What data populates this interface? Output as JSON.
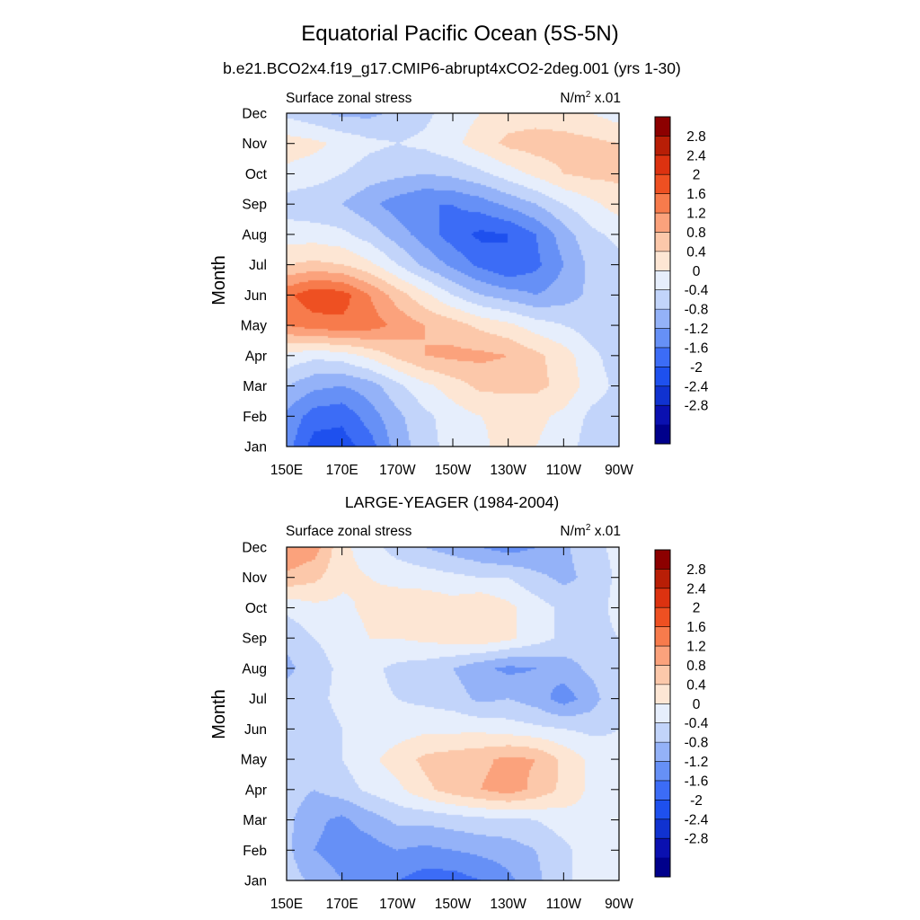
{
  "figure": {
    "title": "Equatorial Pacific Ocean (5S-5N)"
  },
  "chart_data": [
    {
      "type": "heatmap",
      "title": "b.e21.BCO2x4.f19_g17.CMIP6-abrupt4xCO2-2deg.001 (yrs 1-30)",
      "left_string": "Surface zonal stress",
      "units_base": "N/m",
      "units_exp": "2",
      "units_scale": "x.01",
      "xlabel": "",
      "ylabel": "Month",
      "x_ticks": [
        "150E",
        "170E",
        "170W",
        "150W",
        "130W",
        "110W",
        "90W"
      ],
      "y_ticks": [
        "Jan",
        "Feb",
        "Mar",
        "Apr",
        "May",
        "Jun",
        "Jul",
        "Aug",
        "Sep",
        "Oct",
        "Nov",
        "Dec"
      ],
      "x": [
        150,
        160,
        170,
        180,
        190,
        200,
        210,
        220,
        230,
        240,
        250,
        260,
        270
      ],
      "colorbar_labels": [
        "2.8",
        "2.4",
        "2",
        "1.6",
        "1.2",
        "0.8",
        "0.4",
        "0",
        "-0.4",
        "-0.8",
        "-1.2",
        "-1.6",
        "-2",
        "-2.4",
        "-2.8"
      ],
      "levels": [
        -2.8,
        -2.4,
        -2.0,
        -1.6,
        -1.2,
        -0.8,
        -0.4,
        0,
        0.4,
        0.8,
        1.2,
        1.6,
        2.0,
        2.4,
        2.8
      ],
      "z": [
        [
          -1.0,
          -1.8,
          -1.8,
          -1.4,
          -0.6,
          -0.2,
          0.2,
          0.3,
          0.6,
          0.4,
          0.2,
          -0.2,
          -0.3
        ],
        [
          -0.9,
          -1.4,
          -1.5,
          -1.0,
          -0.5,
          -0.1,
          0.2,
          0.4,
          0.5,
          0.5,
          0.3,
          -0.1,
          -0.2
        ],
        [
          -0.4,
          -0.7,
          -0.8,
          -0.6,
          -0.1,
          0.3,
          0.6,
          0.9,
          0.9,
          0.9,
          0.7,
          0.2,
          -0.1
        ],
        [
          0.3,
          0.1,
          0.2,
          0.5,
          0.9,
          1.2,
          1.3,
          1.3,
          1.2,
          0.9,
          0.6,
          0.1,
          -0.2
        ],
        [
          1.6,
          1.8,
          1.9,
          1.8,
          1.5,
          1.2,
          1.0,
          0.7,
          0.5,
          0.2,
          0.0,
          -0.2,
          -0.3
        ],
        [
          1.9,
          2.3,
          2.2,
          1.6,
          1.0,
          0.5,
          0.0,
          -0.4,
          -0.6,
          -0.8,
          -0.6,
          -0.3,
          -0.2
        ],
        [
          0.8,
          0.9,
          0.8,
          0.5,
          0.0,
          -0.5,
          -0.9,
          -1.3,
          -1.6,
          -1.3,
          -0.8,
          -0.3,
          -0.1
        ],
        [
          0.2,
          0.2,
          0.1,
          -0.2,
          -0.6,
          -1.0,
          -1.4,
          -1.7,
          -1.6,
          -1.2,
          -0.6,
          -0.1,
          0.1
        ],
        [
          -0.2,
          -0.3,
          -0.4,
          -0.7,
          -1.0,
          -1.2,
          -1.2,
          -1.0,
          -0.7,
          -0.4,
          0.0,
          0.3,
          0.6
        ],
        [
          0.3,
          0.2,
          0.0,
          -0.2,
          -0.3,
          -0.4,
          -0.3,
          -0.1,
          0.2,
          0.5,
          0.8,
          0.9,
          0.9
        ],
        [
          0.6,
          0.5,
          0.3,
          0.1,
          0.0,
          0.1,
          0.3,
          0.6,
          0.9,
          1.0,
          1.0,
          0.9,
          0.8
        ],
        [
          -0.1,
          -0.3,
          -0.5,
          -0.5,
          -0.3,
          -0.1,
          0.2,
          0.4,
          0.6,
          0.6,
          0.5,
          0.4,
          0.2
        ]
      ]
    },
    {
      "type": "heatmap",
      "title": "LARGE-YEAGER (1984-2004)",
      "left_string": "Surface zonal stress",
      "units_base": "N/m",
      "units_exp": "2",
      "units_scale": "x.01",
      "xlabel": "",
      "ylabel": "Month",
      "x_ticks": [
        "150E",
        "170E",
        "170W",
        "150W",
        "130W",
        "110W",
        "90W"
      ],
      "y_ticks": [
        "Jan",
        "Feb",
        "Mar",
        "Apr",
        "May",
        "Jun",
        "Jul",
        "Aug",
        "Sep",
        "Oct",
        "Nov",
        "Dec"
      ],
      "x": [
        150,
        160,
        170,
        180,
        190,
        200,
        210,
        220,
        230,
        240,
        250,
        260,
        270
      ],
      "colorbar_labels": [
        "2.8",
        "2.4",
        "2",
        "1.6",
        "1.2",
        "0.8",
        "0.4",
        "0",
        "-0.4",
        "-0.8",
        "-1.2",
        "-1.6",
        "-2",
        "-2.4",
        "-2.8"
      ],
      "levels": [
        -2.8,
        -2.4,
        -2.0,
        -1.6,
        -1.2,
        -0.8,
        -0.4,
        0,
        0.4,
        0.8,
        1.2,
        1.6,
        2.0,
        2.4,
        2.8
      ],
      "z": [
        [
          -0.2,
          -0.5,
          -0.8,
          -1.0,
          -1.2,
          -1.4,
          -1.4,
          -1.2,
          -0.9,
          -0.5,
          -0.1,
          0.2,
          0.2
        ],
        [
          -0.3,
          -0.8,
          -1.0,
          -1.0,
          -0.8,
          -0.9,
          -0.8,
          -0.7,
          -0.6,
          -0.4,
          -0.1,
          0.2,
          0.2
        ],
        [
          -0.3,
          -0.7,
          -0.9,
          -0.6,
          -0.3,
          -0.3,
          -0.2,
          -0.1,
          -0.1,
          0.0,
          0.2,
          0.3,
          0.3
        ],
        [
          -0.2,
          -0.4,
          -0.2,
          0.1,
          0.3,
          0.7,
          1.0,
          1.2,
          1.4,
          1.1,
          0.7,
          0.3,
          0.2
        ],
        [
          -0.1,
          -0.3,
          0.0,
          0.3,
          0.6,
          0.9,
          1.0,
          1.1,
          1.3,
          1.2,
          0.7,
          0.3,
          0.1
        ],
        [
          -0.1,
          -0.2,
          0.0,
          0.1,
          0.2,
          0.3,
          0.3,
          0.3,
          0.2,
          0.1,
          0.0,
          -0.1,
          0.0
        ],
        [
          -0.2,
          -0.1,
          0.1,
          0.1,
          0.0,
          -0.1,
          -0.2,
          -0.5,
          -0.4,
          -0.6,
          -1.0,
          -0.6,
          0.0
        ],
        [
          -0.5,
          -0.2,
          0.1,
          0.1,
          -0.1,
          -0.2,
          -0.4,
          -0.7,
          -0.9,
          -0.8,
          -0.6,
          -0.3,
          0.0
        ],
        [
          -0.3,
          0.0,
          0.2,
          0.4,
          0.4,
          0.5,
          0.6,
          0.7,
          0.5,
          0.2,
          -0.1,
          -0.2,
          0.0
        ],
        [
          0.1,
          0.3,
          0.3,
          0.5,
          0.6,
          0.7,
          0.6,
          0.8,
          0.5,
          0.2,
          -0.1,
          -0.3,
          0.2
        ],
        [
          1.1,
          0.9,
          0.5,
          0.4,
          0.3,
          0.2,
          0.1,
          0.0,
          0.0,
          -0.3,
          -0.5,
          -0.3,
          0.1
        ],
        [
          1.6,
          1.4,
          0.5,
          0.2,
          -0.2,
          -0.4,
          -0.6,
          -0.8,
          -1.0,
          -0.8,
          -0.5,
          -0.1,
          0.1
        ]
      ]
    }
  ],
  "colors": {
    "palette": [
      "#00008b",
      "#0a10b0",
      "#1032d0",
      "#1e50ee",
      "#3c6cf6",
      "#6690f6",
      "#94b2f8",
      "#c2d4fa",
      "#e6eefc",
      "#fde6d4",
      "#fcc8aa",
      "#fba27c",
      "#f77b4c",
      "#ee5022",
      "#dc3210",
      "#b81e06",
      "#8c0000"
    ],
    "axis": "#000000",
    "background": "#ffffff"
  }
}
